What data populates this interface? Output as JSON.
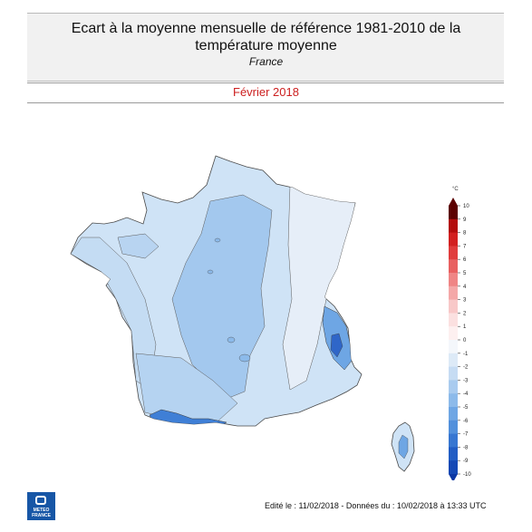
{
  "header": {
    "title_line1": "Ecart à la moyenne mensuelle de référence 1981-2010 de la",
    "title_line2": "température moyenne",
    "region": "France"
  },
  "period": "Février 2018",
  "colorbar": {
    "unit": "°C",
    "ticks": [
      "10",
      "9",
      "8",
      "7",
      "6",
      "5",
      "4",
      "3",
      "2",
      "1",
      "0",
      "-1",
      "-2",
      "-3",
      "-4",
      "-5",
      "-6",
      "-7",
      "-8",
      "-9",
      "-10"
    ],
    "colors": [
      "#5b0000",
      "#b30c0c",
      "#d22020",
      "#e03c3c",
      "#e86060",
      "#ef8585",
      "#f4a8a8",
      "#f8c8c8",
      "#fbe0e0",
      "#fdf0f0",
      "#f4f7fb",
      "#ddeaf7",
      "#c6dcf3",
      "#a9cbef",
      "#8cbaea",
      "#6ea6e4",
      "#5190dc",
      "#3676d1",
      "#215dc4",
      "#1448b5",
      "#0b36a3"
    ]
  },
  "footer": "Edité le : 11/02/2018 - Données du : 10/02/2018 à 13:33 UTC",
  "logo": {
    "line1": "METEO",
    "line2": "FRANCE"
  }
}
